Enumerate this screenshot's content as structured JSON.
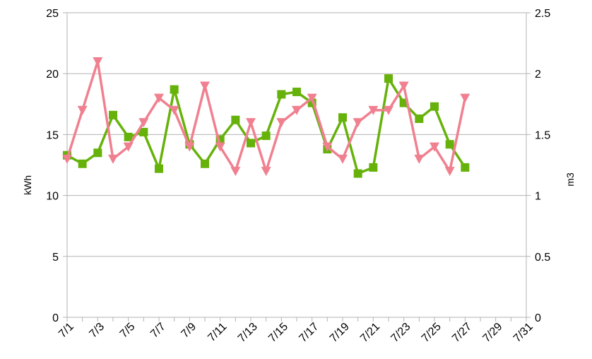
{
  "chart_data": {
    "type": "line",
    "x_categories": [
      "7/1",
      "7/2",
      "7/3",
      "7/4",
      "7/5",
      "7/6",
      "7/7",
      "7/8",
      "7/9",
      "7/10",
      "7/11",
      "7/12",
      "7/13",
      "7/14",
      "7/15",
      "7/16",
      "7/17",
      "7/18",
      "7/19",
      "7/20",
      "7/21",
      "7/22",
      "7/23",
      "7/24",
      "7/25",
      "7/26",
      "7/27",
      "7/28",
      "7/29",
      "7/30",
      "7/31"
    ],
    "x_tick_labels": [
      "7/1",
      "7/3",
      "7/5",
      "7/7",
      "7/9",
      "7/11",
      "7/13",
      "7/15",
      "7/17",
      "7/19",
      "7/21",
      "7/23",
      "7/25",
      "7/27",
      "7/29",
      "7/31"
    ],
    "y_left": {
      "label": "kWh",
      "ylim": [
        0,
        25
      ],
      "ticks": [
        "0",
        "5",
        "10",
        "15",
        "20",
        "25"
      ]
    },
    "y_right": {
      "label": "m3",
      "ylim": [
        0,
        2.5
      ],
      "ticks": [
        "0",
        "0.5",
        "1",
        "1.5",
        "2",
        "2.5"
      ]
    },
    "grid": true,
    "series": [
      {
        "axis": "left",
        "marker": "square",
        "color": "#66b20a",
        "values": [
          13.3,
          12.6,
          13.5,
          16.6,
          14.8,
          15.2,
          12.2,
          18.7,
          14.2,
          12.6,
          14.6,
          16.2,
          14.3,
          14.9,
          18.3,
          18.5,
          17.6,
          13.8,
          16.4,
          11.8,
          12.3,
          19.6,
          17.6,
          16.3,
          17.3,
          14.2,
          12.3,
          null,
          null,
          null,
          null
        ]
      },
      {
        "axis": "right",
        "marker": "triangle-down",
        "color": "#f08090",
        "values": [
          1.3,
          1.7,
          2.1,
          1.3,
          1.4,
          1.6,
          1.8,
          1.7,
          1.4,
          1.9,
          1.4,
          1.2,
          1.6,
          1.2,
          1.6,
          1.7,
          1.8,
          1.4,
          1.3,
          1.6,
          1.7,
          1.7,
          1.9,
          1.3,
          1.4,
          1.2,
          1.8,
          null,
          null,
          null,
          null
        ]
      }
    ]
  }
}
